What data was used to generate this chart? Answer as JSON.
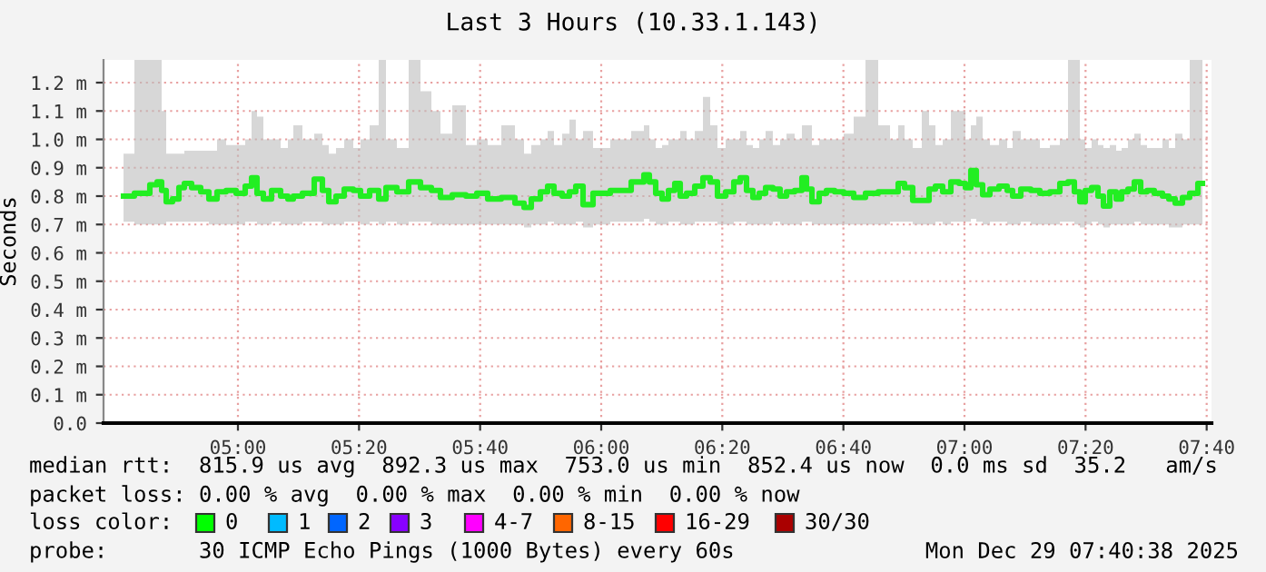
{
  "chart_data": {
    "type": "step",
    "title": "Last 3 Hours (10.33.1.143)",
    "ylabel": "Seconds",
    "xlim": [
      4.63,
      7.68
    ],
    "ylim": [
      0,
      1.28
    ],
    "xticks": [
      {
        "value": 5.0,
        "label": "05:00"
      },
      {
        "value": 5.3333,
        "label": "05:20"
      },
      {
        "value": 5.6667,
        "label": "05:40"
      },
      {
        "value": 6.0,
        "label": "06:00"
      },
      {
        "value": 6.3333,
        "label": "06:20"
      },
      {
        "value": 6.6667,
        "label": "06:40"
      },
      {
        "value": 7.0,
        "label": "07:00"
      },
      {
        "value": 7.3333,
        "label": "07:20"
      },
      {
        "value": 7.6667,
        "label": "07:40"
      }
    ],
    "yticks": [
      {
        "value": 0.0,
        "label": "0.0"
      },
      {
        "value": 0.1,
        "label": "0.1 m"
      },
      {
        "value": 0.2,
        "label": "0.2 m"
      },
      {
        "value": 0.3,
        "label": "0.3 m"
      },
      {
        "value": 0.4,
        "label": "0.4 m"
      },
      {
        "value": 0.5,
        "label": "0.5 m"
      },
      {
        "value": 0.6,
        "label": "0.6 m"
      },
      {
        "value": 0.7,
        "label": "0.7 m"
      },
      {
        "value": 0.8,
        "label": "0.8 m"
      },
      {
        "value": 0.9,
        "label": "0.9 m"
      },
      {
        "value": 1.0,
        "label": "1.0 m"
      },
      {
        "value": 1.1,
        "label": "1.1 m"
      },
      {
        "value": 1.2,
        "label": "1.2 m"
      }
    ],
    "grid": true,
    "marker": "none",
    "line_style": "solid",
    "series": [
      {
        "color": "#22ee22",
        "x": [
          4.685,
          4.745,
          4.77,
          4.785,
          4.795,
          4.81,
          4.83,
          4.845,
          4.86,
          4.885,
          4.91,
          4.93,
          4.955,
          4.98,
          5.01,
          5.03,
          5.045,
          5.06,
          5.08,
          5.105,
          5.13,
          5.145,
          5.16,
          5.195,
          5.225,
          5.24,
          5.26,
          5.28,
          5.305,
          5.33,
          5.345,
          5.38,
          5.395,
          5.42,
          5.455,
          5.485,
          5.52,
          5.545,
          5.57,
          5.61,
          5.645,
          5.67,
          5.705,
          5.745,
          5.78,
          5.795,
          5.82,
          5.845,
          5.86,
          5.88,
          5.905,
          5.92,
          5.94,
          5.96,
          5.995,
          6.055,
          6.11,
          6.125,
          6.14,
          6.16,
          6.175,
          6.195,
          6.21,
          6.225,
          6.245,
          6.27,
          6.29,
          6.31,
          6.33,
          6.355,
          6.375,
          6.39,
          6.41,
          6.425,
          6.445,
          6.46,
          6.485,
          6.5,
          6.52,
          6.545,
          6.56,
          6.57,
          6.59,
          6.61,
          6.63,
          6.655,
          6.68,
          6.71,
          6.745,
          6.78,
          6.81,
          6.825,
          6.845,
          6.87,
          6.895,
          6.91,
          6.93,
          6.95,
          6.975,
          6.995,
          7.01,
          7.025,
          7.04,
          7.06,
          7.08,
          7.11,
          7.125,
          7.14,
          7.17,
          7.195,
          7.22,
          7.25,
          7.275,
          7.295,
          7.31,
          7.325,
          7.34,
          7.36,
          7.375,
          7.39,
          7.41,
          7.425,
          7.44,
          7.46,
          7.475,
          7.495,
          7.51,
          7.535,
          7.555,
          7.57,
          7.59,
          7.61,
          7.63,
          7.655
        ],
        "values": [
          0.8,
          0.81,
          0.84,
          0.85,
          0.82,
          0.78,
          0.79,
          0.83,
          0.845,
          0.83,
          0.815,
          0.79,
          0.815,
          0.82,
          0.81,
          0.835,
          0.865,
          0.81,
          0.79,
          0.82,
          0.8,
          0.79,
          0.8,
          0.81,
          0.86,
          0.82,
          0.78,
          0.8,
          0.825,
          0.82,
          0.8,
          0.82,
          0.79,
          0.83,
          0.815,
          0.85,
          0.83,
          0.82,
          0.795,
          0.805,
          0.8,
          0.81,
          0.79,
          0.795,
          0.775,
          0.76,
          0.79,
          0.815,
          0.835,
          0.81,
          0.8,
          0.815,
          0.835,
          0.77,
          0.81,
          0.82,
          0.85,
          0.875,
          0.85,
          0.81,
          0.79,
          0.82,
          0.845,
          0.8,
          0.81,
          0.835,
          0.865,
          0.85,
          0.8,
          0.815,
          0.85,
          0.865,
          0.82,
          0.795,
          0.81,
          0.83,
          0.825,
          0.8,
          0.815,
          0.82,
          0.865,
          0.825,
          0.78,
          0.81,
          0.82,
          0.815,
          0.81,
          0.795,
          0.81,
          0.815,
          0.815,
          0.845,
          0.83,
          0.785,
          0.785,
          0.825,
          0.835,
          0.815,
          0.85,
          0.845,
          0.83,
          0.89,
          0.84,
          0.805,
          0.825,
          0.835,
          0.82,
          0.8,
          0.825,
          0.82,
          0.81,
          0.815,
          0.845,
          0.85,
          0.815,
          0.78,
          0.82,
          0.83,
          0.8,
          0.765,
          0.815,
          0.79,
          0.815,
          0.825,
          0.85,
          0.815,
          0.82,
          0.81,
          0.8,
          0.79,
          0.775,
          0.795,
          0.81,
          0.845
        ],
        "lower": [
          0.71,
          0.7,
          0.7,
          0.7,
          0.7,
          0.71,
          0.71,
          0.71,
          0.71,
          0.71,
          0.71,
          0.7,
          0.7,
          0.7,
          0.7,
          0.71,
          0.71,
          0.7,
          0.7,
          0.71,
          0.7,
          0.7,
          0.7,
          0.71,
          0.71,
          0.7,
          0.7,
          0.7,
          0.71,
          0.71,
          0.7,
          0.71,
          0.7,
          0.71,
          0.7,
          0.71,
          0.71,
          0.7,
          0.7,
          0.7,
          0.7,
          0.7,
          0.7,
          0.7,
          0.7,
          0.69,
          0.7,
          0.7,
          0.71,
          0.7,
          0.7,
          0.7,
          0.71,
          0.69,
          0.7,
          0.71,
          0.71,
          0.72,
          0.71,
          0.7,
          0.7,
          0.71,
          0.71,
          0.7,
          0.7,
          0.71,
          0.71,
          0.71,
          0.7,
          0.7,
          0.71,
          0.71,
          0.7,
          0.7,
          0.7,
          0.7,
          0.71,
          0.7,
          0.7,
          0.7,
          0.71,
          0.71,
          0.7,
          0.7,
          0.7,
          0.7,
          0.7,
          0.7,
          0.7,
          0.7,
          0.71,
          0.71,
          0.71,
          0.7,
          0.7,
          0.7,
          0.71,
          0.7,
          0.71,
          0.71,
          0.71,
          0.72,
          0.71,
          0.7,
          0.71,
          0.71,
          0.7,
          0.7,
          0.71,
          0.7,
          0.7,
          0.7,
          0.71,
          0.71,
          0.7,
          0.69,
          0.7,
          0.71,
          0.7,
          0.69,
          0.7,
          0.7,
          0.7,
          0.7,
          0.71,
          0.7,
          0.7,
          0.7,
          0.7,
          0.69,
          0.69,
          0.7,
          0.7,
          0.7
        ],
        "upper": [
          0.95,
          1.28,
          1.28,
          1.28,
          1.1,
          0.95,
          0.95,
          0.95,
          0.96,
          0.96,
          0.96,
          0.96,
          1.0,
          0.98,
          0.98,
          1.0,
          1.1,
          1.08,
          1.0,
          1.0,
          0.97,
          1.0,
          1.05,
          1.0,
          1.02,
          0.98,
          0.95,
          0.97,
          1.0,
          0.97,
          1.0,
          1.05,
          1.28,
          1.0,
          0.97,
          1.28,
          1.17,
          1.1,
          1.02,
          1.12,
          0.98,
          1.0,
          0.98,
          1.05,
          1.0,
          0.95,
          0.98,
          1.0,
          1.03,
          0.98,
          1.02,
          1.07,
          1.0,
          1.03,
          0.97,
          1.0,
          1.03,
          1.05,
          1.0,
          0.97,
          0.98,
          1.0,
          1.0,
          1.03,
          1.0,
          1.03,
          1.15,
          1.05,
          0.97,
          1.0,
          1.0,
          1.03,
          0.98,
          0.97,
          1.0,
          1.03,
          0.98,
          1.0,
          1.02,
          1.0,
          1.05,
          1.05,
          0.98,
          1.0,
          1.0,
          1.0,
          1.02,
          1.08,
          1.28,
          1.05,
          1.0,
          1.05,
          1.0,
          0.97,
          1.1,
          1.05,
          0.98,
          1.0,
          1.1,
          1.1,
          1.0,
          1.05,
          1.08,
          1.0,
          0.98,
          1.0,
          0.97,
          1.03,
          1.0,
          1.0,
          0.97,
          0.98,
          1.0,
          1.28,
          1.28,
          1.0,
          0.97,
          1.0,
          0.98,
          0.97,
          0.98,
          0.96,
          0.97,
          1.0,
          1.02,
          0.98,
          0.97,
          0.97,
          1.0,
          0.97,
          1.02,
          1.0,
          1.28,
          1.28
        ]
      }
    ],
    "annotations": [
      "median rtt:  815.9 us avg  892.3 us max  753.0 us min  852.4 us now  0.0 ms sd  35.2   am/s",
      "packet loss: 0.00 % avg  0.00 % max  0.00 % min  0.00 % now",
      "loss color:",
      "0",
      "1",
      "2",
      "3",
      "4-7",
      "8-15",
      "16-29",
      "30/30",
      "probe:       30 ICMP Echo Pings (1000 Bytes) every 60s",
      "Mon Dec 29 07:40:38 2025"
    ]
  }
}
